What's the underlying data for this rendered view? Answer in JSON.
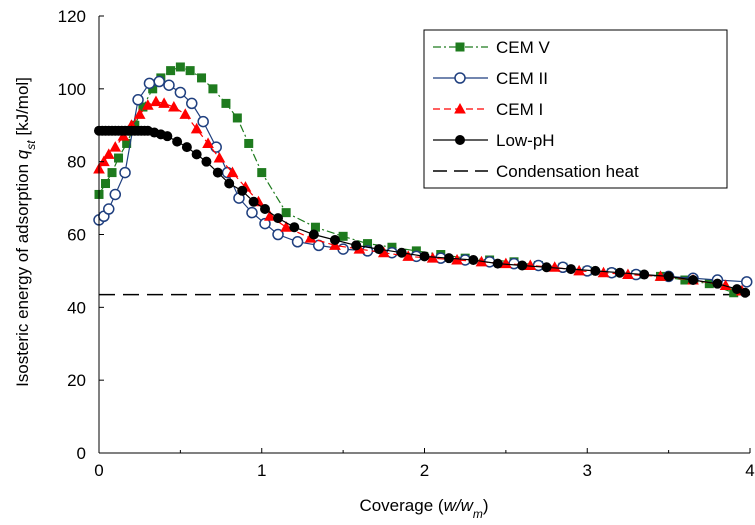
{
  "chart_data": {
    "type": "line",
    "xlabel": {
      "prefix": "Coverage (",
      "var": "w",
      "sep": "/",
      "var2": "w",
      "sub2": "m",
      "suffix": ")"
    },
    "ylabel": {
      "prefix": "Isosteric energy of adsorption ",
      "var": "q",
      "sub": "st",
      "suffix": " [kJ/mol]"
    },
    "xlim": [
      0,
      4
    ],
    "ylim": [
      0,
      120
    ],
    "xticks": [
      0,
      1,
      2,
      3,
      4
    ],
    "yticks": [
      0,
      20,
      40,
      60,
      80,
      100,
      120
    ],
    "xtick_labels": [
      "0",
      "1",
      "2",
      "3",
      "4"
    ],
    "ytick_labels": [
      "0",
      "20",
      "40",
      "60",
      "80",
      "100",
      "120"
    ],
    "grid": false,
    "legend_position": "top-right",
    "series": [
      {
        "name": "CEM V",
        "color": "#1e7b1e",
        "dash": "dashdot",
        "marker": "square",
        "x": [
          0.0,
          0.04,
          0.08,
          0.12,
          0.17,
          0.22,
          0.27,
          0.33,
          0.38,
          0.44,
          0.5,
          0.56,
          0.63,
          0.7,
          0.78,
          0.85,
          0.92,
          1.0,
          1.15,
          1.33,
          1.5,
          1.65,
          1.8,
          1.95,
          2.1,
          2.25,
          2.4,
          2.55,
          2.7,
          2.85,
          3.0,
          3.15,
          3.3,
          3.45,
          3.6,
          3.75,
          3.9
        ],
        "y": [
          71,
          74,
          77,
          81,
          85,
          90,
          95,
          100,
          103,
          105,
          106,
          105,
          103,
          100,
          96,
          92,
          85,
          77,
          66,
          62,
          59.5,
          57.5,
          56.5,
          55.5,
          54.5,
          53.5,
          53,
          52.5,
          51.5,
          51,
          50,
          49.5,
          49,
          48.5,
          47.5,
          46.5,
          44
        ]
      },
      {
        "name": "CEM II",
        "color": "#1f3f7f",
        "dash": "solid",
        "marker": "circle-open",
        "x": [
          0.0,
          0.03,
          0.06,
          0.1,
          0.16,
          0.24,
          0.31,
          0.37,
          0.43,
          0.5,
          0.57,
          0.64,
          0.72,
          0.79,
          0.86,
          0.94,
          1.02,
          1.1,
          1.22,
          1.35,
          1.5,
          1.65,
          1.8,
          1.95,
          2.1,
          2.25,
          2.4,
          2.55,
          2.7,
          2.85,
          3.0,
          3.15,
          3.3,
          3.5,
          3.65,
          3.8,
          3.98
        ],
        "y": [
          64,
          65,
          67,
          71,
          77,
          97,
          101.5,
          102,
          101,
          99,
          96,
          91,
          84,
          77,
          70,
          66,
          63,
          60,
          58,
          57,
          56,
          55.5,
          55,
          54,
          53.5,
          53,
          52.5,
          52,
          51.5,
          51,
          50,
          49.5,
          49,
          48.5,
          48,
          47.5,
          47
        ]
      },
      {
        "name": "CEM I",
        "color": "#ff0000",
        "dash": "dash",
        "marker": "triangle",
        "x": [
          0.0,
          0.03,
          0.06,
          0.1,
          0.15,
          0.2,
          0.25,
          0.3,
          0.35,
          0.4,
          0.46,
          0.53,
          0.6,
          0.67,
          0.74,
          0.82,
          0.9,
          0.98,
          1.05,
          1.15,
          1.3,
          1.45,
          1.6,
          1.75,
          1.9,
          2.05,
          2.2,
          2.35,
          2.5,
          2.65,
          2.8,
          2.95,
          3.1,
          3.25,
          3.45,
          3.65,
          3.85,
          3.95
        ],
        "y": [
          78,
          80,
          82,
          84,
          87,
          90,
          93,
          95.5,
          96.5,
          96,
          95,
          93,
          89,
          85,
          81,
          77,
          73,
          69,
          65,
          62,
          59,
          57,
          56,
          55,
          54,
          53.5,
          53,
          52.5,
          52,
          51.5,
          51,
          50,
          49.5,
          49,
          48.5,
          47.5,
          46,
          44.5
        ]
      },
      {
        "name": "Low-pH",
        "color": "#000000",
        "dash": "solid",
        "marker": "circle",
        "x": [
          0.0,
          0.02,
          0.04,
          0.06,
          0.08,
          0.1,
          0.12,
          0.14,
          0.16,
          0.18,
          0.2,
          0.22,
          0.24,
          0.26,
          0.28,
          0.3,
          0.34,
          0.38,
          0.42,
          0.48,
          0.54,
          0.6,
          0.66,
          0.73,
          0.8,
          0.88,
          0.95,
          1.02,
          1.1,
          1.2,
          1.32,
          1.45,
          1.58,
          1.72,
          1.86,
          2.0,
          2.15,
          2.3,
          2.45,
          2.6,
          2.75,
          2.9,
          3.05,
          3.2,
          3.35,
          3.5,
          3.65,
          3.8,
          3.92,
          3.97
        ],
        "y": [
          88.5,
          88.5,
          88.5,
          88.5,
          88.5,
          88.5,
          88.5,
          88.5,
          88.5,
          88.5,
          88.5,
          88.5,
          88.5,
          88.5,
          88.5,
          88.5,
          88,
          87.5,
          87,
          85.5,
          84,
          82,
          80,
          77,
          74,
          72,
          69,
          67,
          64.5,
          62,
          60,
          58.5,
          57,
          56,
          55,
          54,
          53.5,
          53,
          52,
          51.5,
          51,
          50.5,
          50,
          49.5,
          49,
          48.5,
          47.5,
          46.5,
          45,
          44
        ]
      }
    ],
    "reference_lines": [
      {
        "name": "Condensation heat",
        "y": 43.5,
        "color": "#000000",
        "dash": "longdash"
      }
    ]
  }
}
